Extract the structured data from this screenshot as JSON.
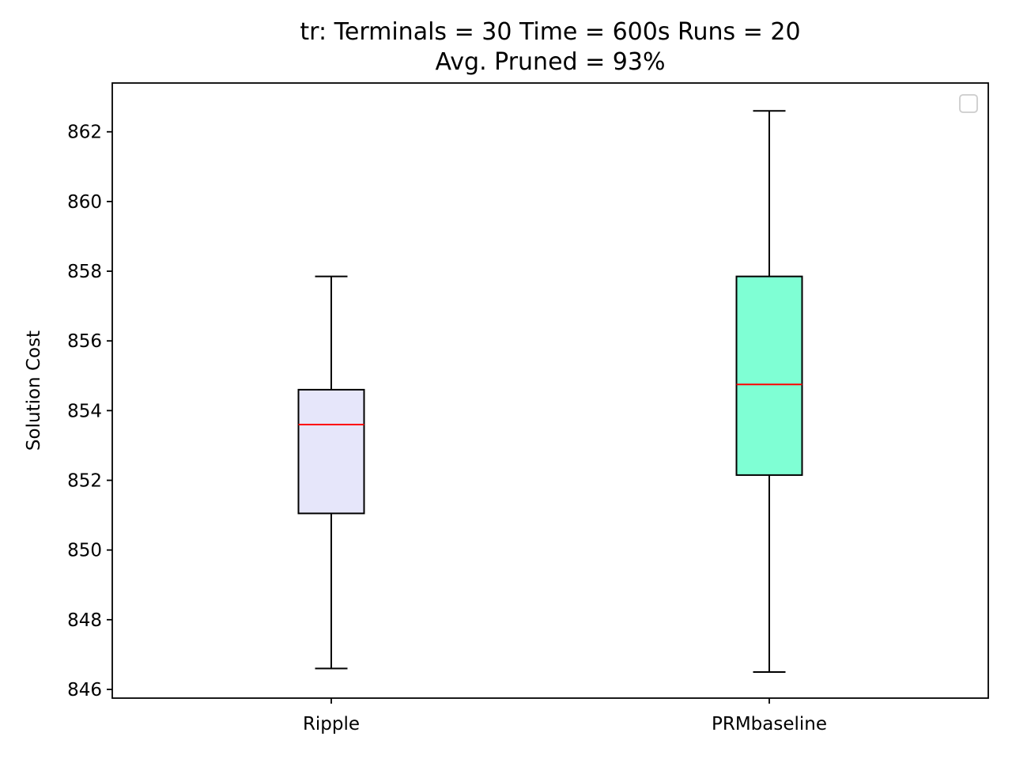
{
  "chart_data": {
    "type": "box",
    "title": "tr:  Terminals = 30  Time = 600s  Runs = 20",
    "subtitle": "Avg. Pruned = 93%",
    "xlabel": "",
    "ylabel": "Solution Cost",
    "ylim": [
      845.75,
      863.4
    ],
    "yticks": [
      846,
      848,
      850,
      852,
      854,
      856,
      858,
      860,
      862
    ],
    "grid": false,
    "legend": "upper right (empty)",
    "categories": [
      "Ripple",
      "PRMbaseline"
    ],
    "boxes": [
      {
        "category": "Ripple",
        "whisker_low": 846.6,
        "q1": 851.05,
        "median": 853.6,
        "q3": 854.6,
        "whisker_high": 857.85,
        "fill": "#e6e6fa"
      },
      {
        "category": "PRMbaseline",
        "whisker_low": 846.5,
        "q1": 852.15,
        "median": 854.75,
        "q3": 857.85,
        "whisker_high": 862.6,
        "fill": "#7fffd4"
      }
    ],
    "median_color": "#ff0000",
    "line_color": "#000000"
  }
}
